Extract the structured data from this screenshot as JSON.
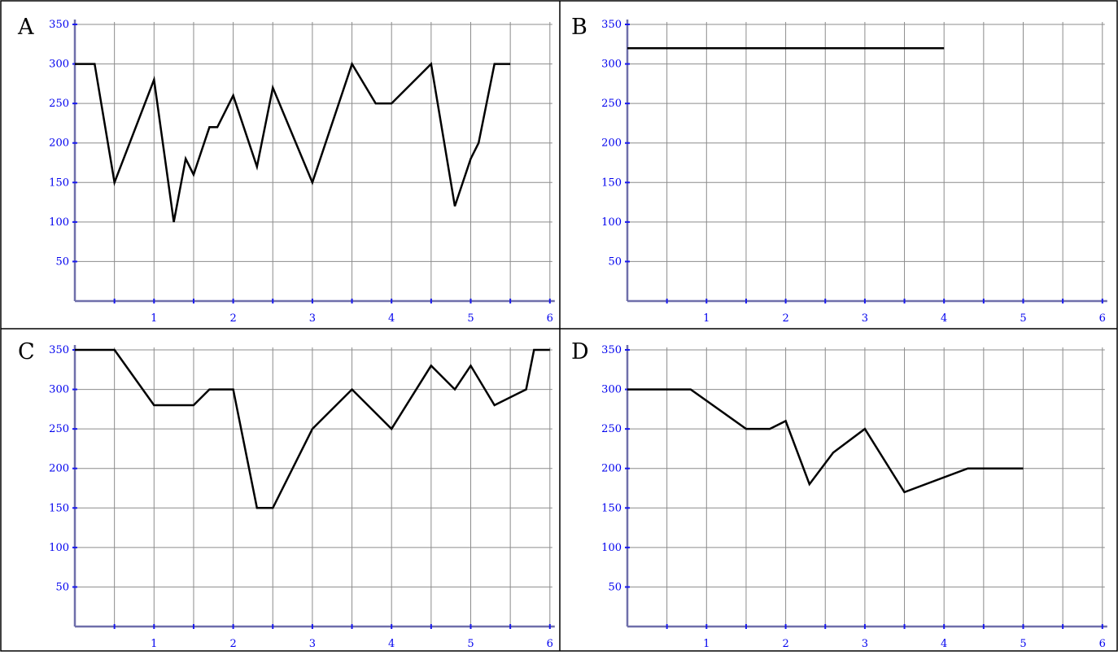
{
  "colors": {
    "line": "#000000",
    "grid": "#8c8c8c",
    "axis": "#6f6faa",
    "tick_label": "#0000ee",
    "tick_mark": "#1a1aee"
  },
  "chart_data": [
    {
      "type": "line",
      "panel_label": "A",
      "xlim": [
        0,
        6
      ],
      "ylim": [
        0,
        350
      ],
      "grid": true,
      "x_ticks": [
        1,
        2,
        3,
        4,
        5,
        6
      ],
      "x_tick_labels": [
        "1",
        "2",
        "3",
        "4",
        "5",
        "6"
      ],
      "y_ticks": [
        50,
        100,
        150,
        200,
        250,
        300,
        350
      ],
      "y_tick_labels": [
        "50",
        "100",
        "150",
        "200",
        "250",
        "300",
        "350"
      ],
      "series": [
        {
          "x": [
            0,
            0.25,
            0.5,
            1,
            1.25,
            1.4,
            1.5,
            1.7,
            1.8,
            2,
            2.3,
            2.5,
            3,
            3.5,
            3.8,
            4,
            4.5,
            4.8,
            5,
            5.1,
            5.3,
            5.5
          ],
          "y": [
            300,
            300,
            150,
            280,
            100,
            180,
            160,
            220,
            220,
            260,
            170,
            270,
            150,
            300,
            250,
            250,
            300,
            120,
            180,
            200,
            300,
            300
          ]
        }
      ]
    },
    {
      "type": "line",
      "panel_label": "B",
      "xlim": [
        0,
        6
      ],
      "ylim": [
        0,
        350
      ],
      "grid": true,
      "x_ticks": [
        1,
        2,
        3,
        4,
        5,
        6
      ],
      "x_tick_labels": [
        "1",
        "2",
        "3",
        "4",
        "5",
        "6"
      ],
      "y_ticks": [
        50,
        100,
        150,
        200,
        250,
        300,
        350
      ],
      "y_tick_labels": [
        "50",
        "100",
        "150",
        "200",
        "250",
        "300",
        "350"
      ],
      "series": [
        {
          "x": [
            0,
            4
          ],
          "y": [
            320,
            320
          ]
        }
      ]
    },
    {
      "type": "line",
      "panel_label": "C",
      "xlim": [
        0,
        6
      ],
      "ylim": [
        0,
        350
      ],
      "grid": true,
      "x_ticks": [
        1,
        2,
        3,
        4,
        5,
        6
      ],
      "x_tick_labels": [
        "1",
        "2",
        "3",
        "4",
        "5",
        "6"
      ],
      "y_ticks": [
        50,
        100,
        150,
        200,
        250,
        300,
        350
      ],
      "y_tick_labels": [
        "50",
        "100",
        "150",
        "200",
        "250",
        "300",
        "350"
      ],
      "series": [
        {
          "x": [
            0,
            0.5,
            1,
            1.5,
            1.7,
            2,
            2.3,
            2.5,
            3,
            3.5,
            4,
            4.5,
            4.8,
            5,
            5.3,
            5.7,
            5.8,
            6
          ],
          "y": [
            350,
            350,
            280,
            280,
            300,
            300,
            150,
            150,
            250,
            300,
            250,
            330,
            300,
            330,
            280,
            300,
            350,
            350
          ]
        }
      ]
    },
    {
      "type": "line",
      "panel_label": "D",
      "xlim": [
        0,
        6
      ],
      "ylim": [
        0,
        350
      ],
      "grid": true,
      "x_ticks": [
        1,
        2,
        3,
        4,
        5,
        6
      ],
      "x_tick_labels": [
        "1",
        "2",
        "3",
        "4",
        "5",
        "6"
      ],
      "y_ticks": [
        50,
        100,
        150,
        200,
        250,
        300,
        350
      ],
      "y_tick_labels": [
        "50",
        "100",
        "150",
        "200",
        "250",
        "300",
        "350"
      ],
      "series": [
        {
          "x": [
            0,
            0.8,
            1.5,
            1.8,
            2,
            2.3,
            2.6,
            3,
            3.5,
            4.3,
            5
          ],
          "y": [
            300,
            300,
            250,
            250,
            260,
            180,
            220,
            250,
            170,
            200,
            200
          ]
        }
      ]
    }
  ]
}
